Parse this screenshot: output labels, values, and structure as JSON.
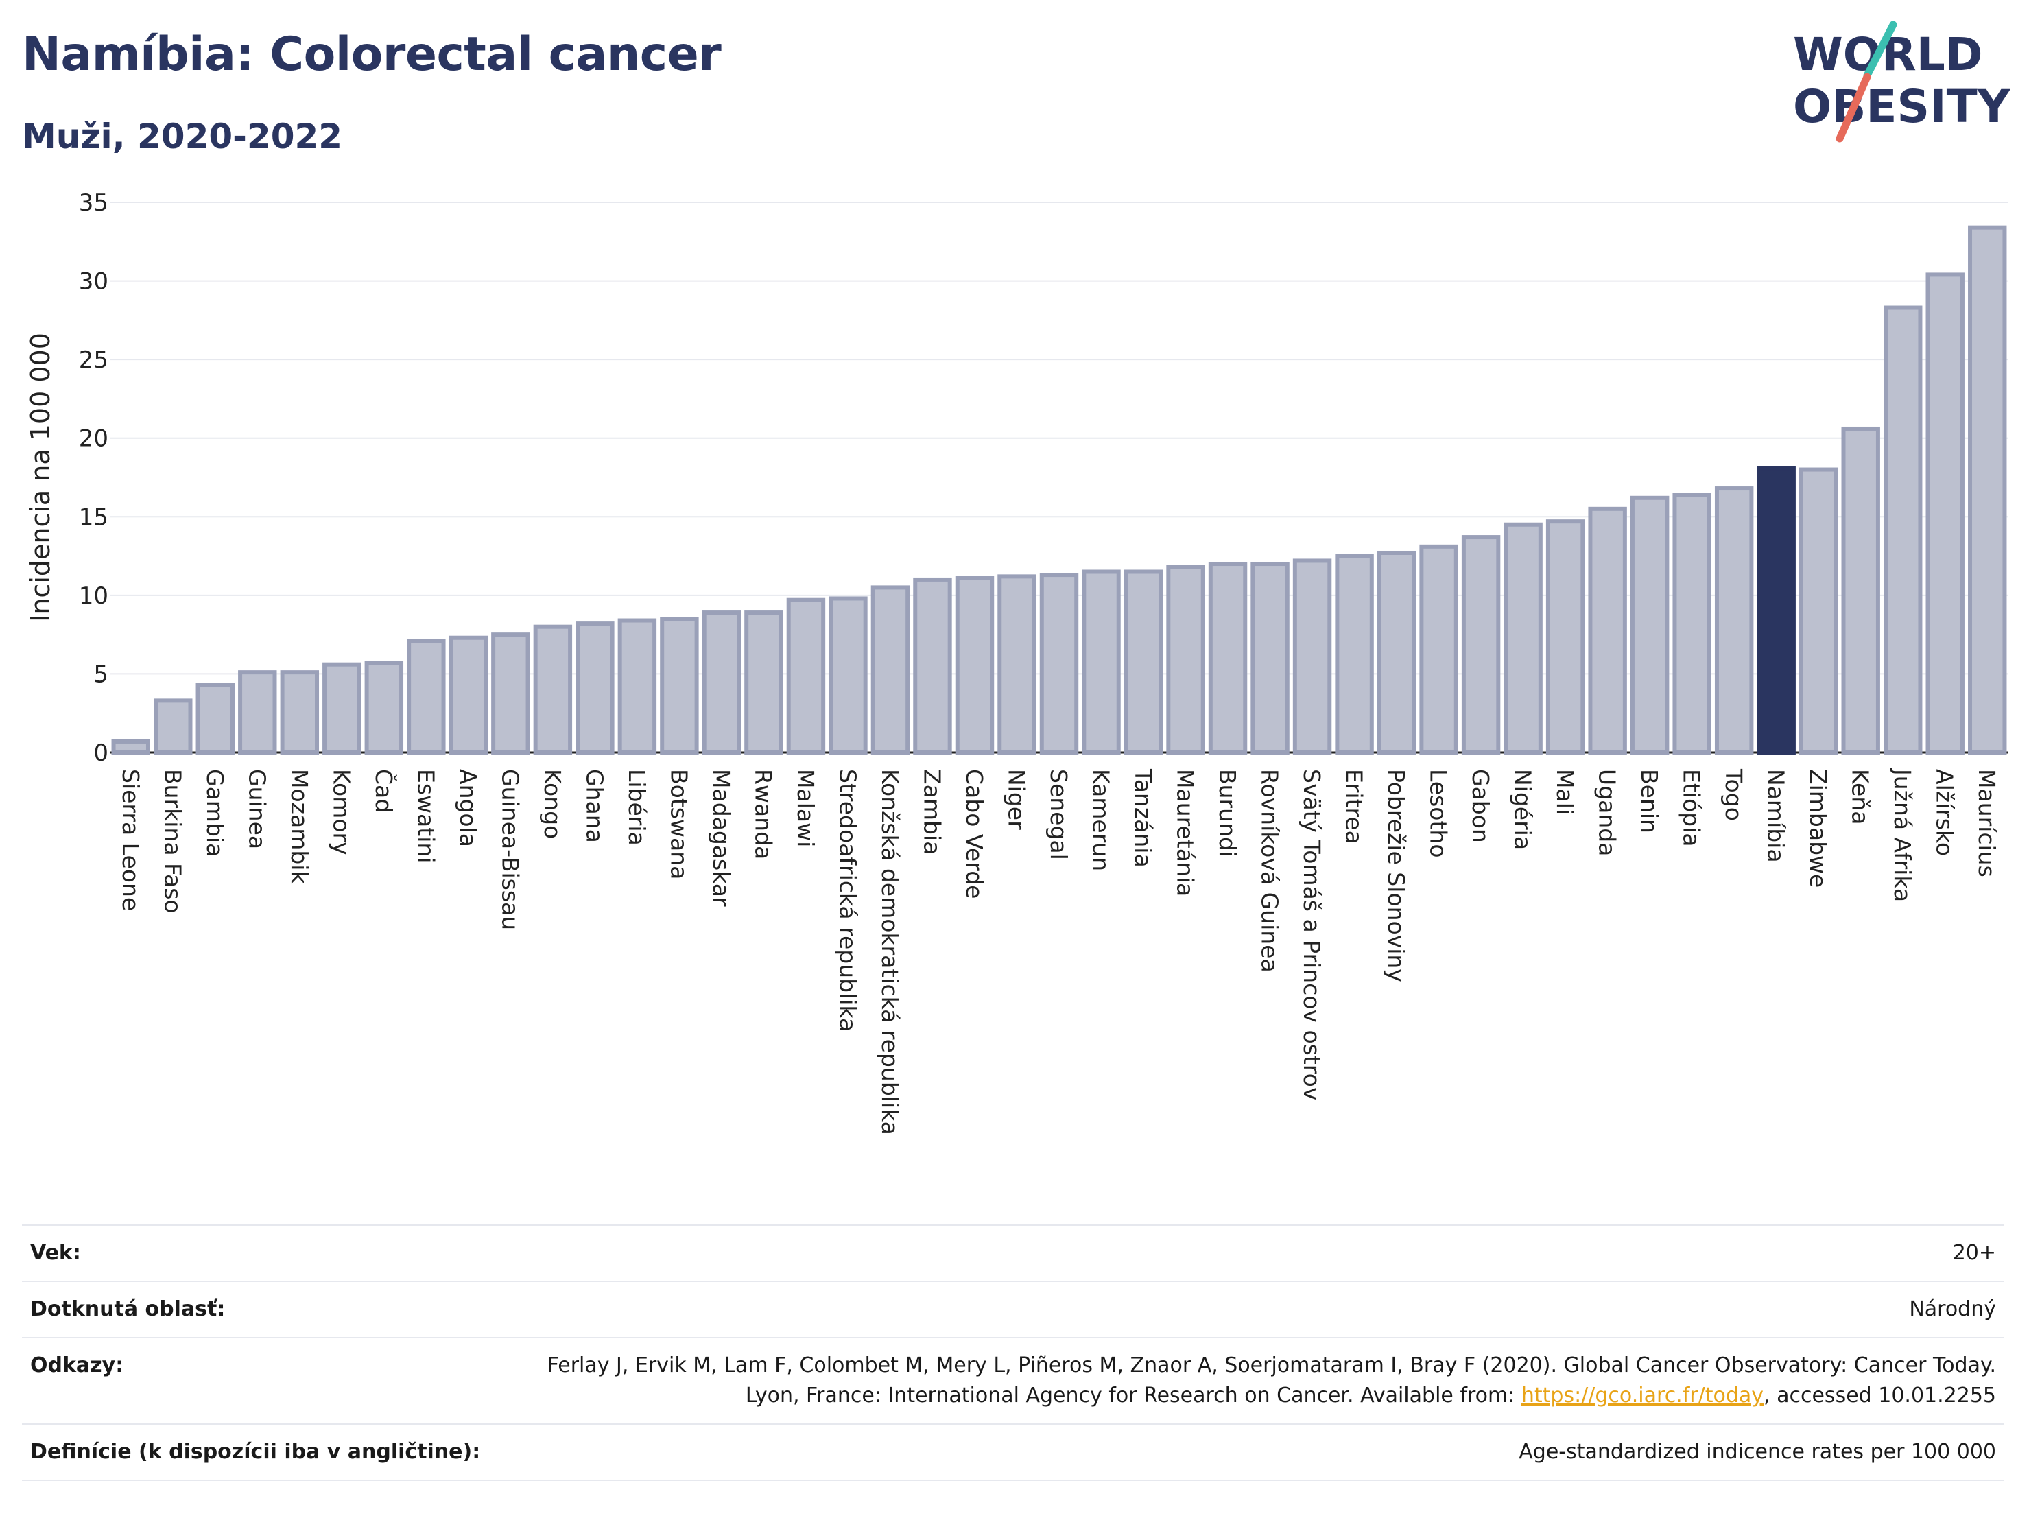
{
  "header": {
    "title": "Namíbia: Colorectal cancer",
    "subtitle": "Muži, 2020-2022",
    "logo_line1": "WORLD",
    "logo_line2": "OBESITY"
  },
  "colors": {
    "bar": "#bcc0cf",
    "bar_stroke": "#9aa0b8",
    "highlight": "#2a3560",
    "grid": "#e6e8ee",
    "axis": "#222222",
    "logo_accent_teal": "#3bbfb0",
    "logo_accent_red": "#e66a5a"
  },
  "chart_data": {
    "type": "bar",
    "title": "Namíbia: Colorectal cancer",
    "subtitle": "Muži, 2020-2022",
    "xlabel": "",
    "ylabel": "Incidencia na 100 000",
    "ylim": [
      0,
      35
    ],
    "yticks": [
      0,
      5,
      10,
      15,
      20,
      25,
      30,
      35
    ],
    "grid": true,
    "highlight_category": "Namíbia",
    "categories": [
      "Sierra Leone",
      "Burkina Faso",
      "Gambia",
      "Guinea",
      "Mozambik",
      "Komory",
      "Čad",
      "Eswatini",
      "Angola",
      "Guinea-Bissau",
      "Kongo",
      "Ghana",
      "Libéria",
      "Botswana",
      "Madagaskar",
      "Rwanda",
      "Malawi",
      "Stredoafrická republika",
      "Konžská demokratická republika",
      "Zambia",
      "Cabo Verde",
      "Niger",
      "Senegal",
      "Kamerun",
      "Tanzánia",
      "Mauretánia",
      "Burundi",
      "Rovníková Guinea",
      "Svätý Tomáš a Princov ostrov",
      "Eritrea",
      "Pobrežie Slonoviny",
      "Lesotho",
      "Gabon",
      "Nigéria",
      "Mali",
      "Uganda",
      "Benin",
      "Etiópia",
      "Togo",
      "Namíbia",
      "Zimbabwe",
      "Keňa",
      "Južná Afrika",
      "Alžírsko",
      "Maurícius"
    ],
    "values": [
      0.7,
      3.3,
      4.3,
      5.1,
      5.1,
      5.6,
      5.7,
      7.1,
      7.3,
      7.5,
      8.0,
      8.2,
      8.4,
      8.5,
      8.9,
      8.9,
      9.7,
      9.8,
      10.5,
      11.0,
      11.1,
      11.2,
      11.3,
      11.5,
      11.5,
      11.8,
      12.0,
      12.0,
      12.2,
      12.5,
      12.7,
      13.1,
      13.7,
      14.5,
      14.7,
      15.5,
      16.2,
      16.4,
      16.8,
      18.1,
      18.0,
      20.6,
      28.3,
      30.4,
      33.4
    ]
  },
  "info": {
    "rows": [
      {
        "key": "Vek:",
        "value": "20+"
      },
      {
        "key": "Dotknutá oblasť:",
        "value": "Národný"
      },
      {
        "key": "Odkazy:",
        "value_prefix": "Ferlay J, Ervik M, Lam F, Colombet M, Mery L, Piñeros M, Znaor A, Soerjomataram I, Bray F (2020). Global Cancer Observatory: Cancer Today. Lyon, France: International Agency for Research on Cancer. Available from: ",
        "link": "https://gco.iarc.fr/today",
        "value_suffix": ", accessed 10.01.2255"
      },
      {
        "key": "Definície (k dispozícii iba v angličtine):",
        "value": "Age-standardized indicence rates per 100 000"
      }
    ]
  }
}
